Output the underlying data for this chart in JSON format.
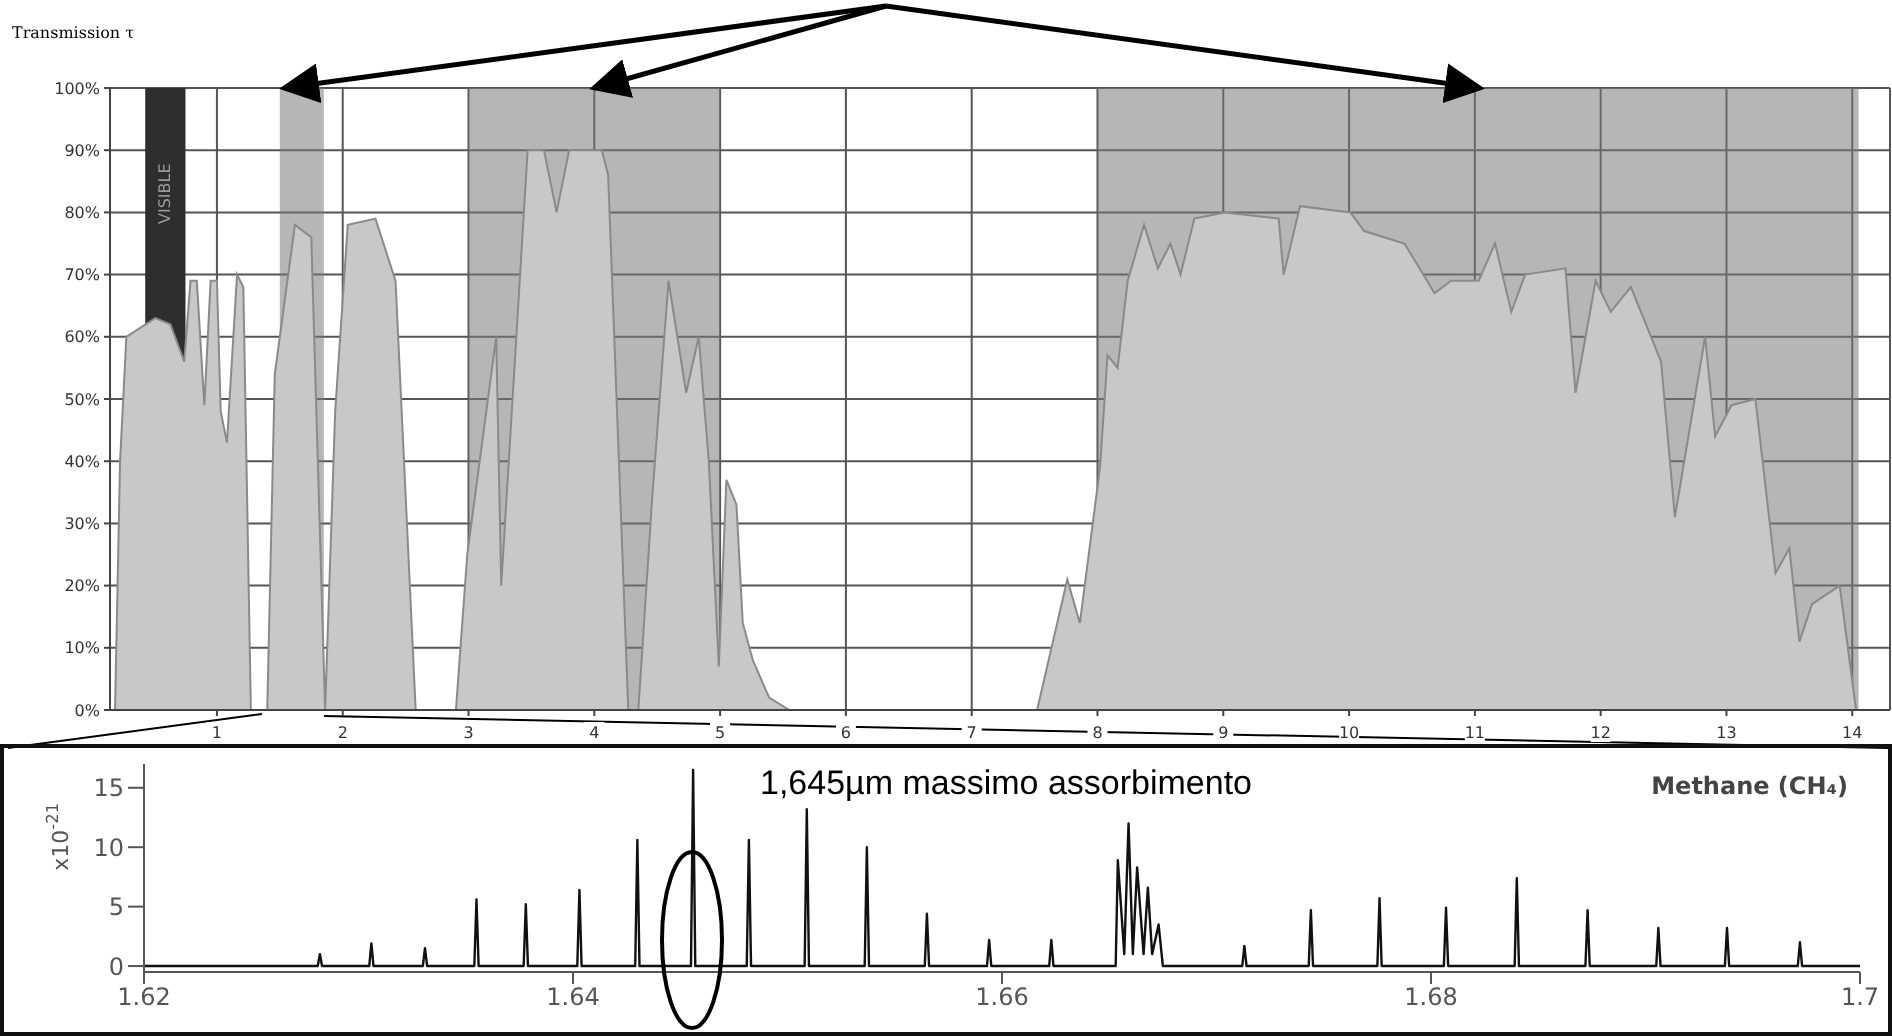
{
  "chart_data": [
    {
      "type": "area",
      "ylabel": "Transmission  τ",
      "xlim": [
        0.15,
        14.3
      ],
      "xticks": [
        1,
        2,
        3,
        4,
        5,
        6,
        7,
        8,
        9,
        10,
        11,
        12,
        13,
        14
      ],
      "ylim": [
        0,
        100
      ],
      "yticks": [
        {
          "value": 0,
          "label": "0%"
        },
        {
          "value": 10,
          "label": "10%"
        },
        {
          "value": 20,
          "label": "20%"
        },
        {
          "value": 30,
          "label": "30%"
        },
        {
          "value": 40,
          "label": "40%"
        },
        {
          "value": 50,
          "label": "50%"
        },
        {
          "value": 60,
          "label": "60%"
        },
        {
          "value": 70,
          "label": "70%"
        },
        {
          "value": 80,
          "label": "80%"
        },
        {
          "value": 90,
          "label": "90%"
        },
        {
          "value": 100,
          "label": "100%"
        }
      ],
      "grid": true,
      "x": [
        0.19,
        0.23,
        0.28,
        0.51,
        0.63,
        0.74,
        0.79,
        0.84,
        0.9,
        0.95,
        1.0,
        1.03,
        1.08,
        1.16,
        1.21,
        1.27,
        1.4,
        1.46,
        1.62,
        1.75,
        1.86,
        1.94,
        2.04,
        2.26,
        2.42,
        2.58,
        2.9,
        2.99,
        3.22,
        3.26,
        3.47,
        3.6,
        3.7,
        3.8,
        4.06,
        4.11,
        4.27,
        4.35,
        4.46,
        4.59,
        4.73,
        4.83,
        4.91,
        4.99,
        5.05,
        5.13,
        5.18,
        5.26,
        5.39,
        5.55,
        7.52,
        7.76,
        7.86,
        8.02,
        8.08,
        8.16,
        8.24,
        8.37,
        8.48,
        8.58,
        8.66,
        8.77,
        9.01,
        9.44,
        9.48,
        9.61,
        10.01,
        10.12,
        10.44,
        10.68,
        10.81,
        11.03,
        11.16,
        11.29,
        11.4,
        11.72,
        11.8,
        11.96,
        12.08,
        12.24,
        12.48,
        12.59,
        12.83,
        12.91,
        13.04,
        13.23,
        13.39,
        13.5,
        13.58,
        13.68,
        13.9,
        14.03
      ],
      "values": [
        0,
        40,
        60,
        63,
        62,
        56,
        69,
        69,
        49,
        69,
        69,
        48,
        43,
        70,
        68,
        0,
        0,
        54,
        78,
        76,
        0,
        48,
        78,
        79,
        69,
        0,
        0,
        25,
        60,
        20,
        90,
        90,
        80,
        90,
        90,
        86,
        0,
        0,
        34,
        69,
        51,
        60,
        40,
        7,
        37,
        33,
        14,
        8,
        2,
        0,
        0,
        21,
        14,
        39,
        57,
        55,
        69,
        78,
        71,
        75,
        70,
        79,
        80,
        79,
        70,
        81,
        80,
        77,
        75,
        67,
        69,
        69,
        75,
        64,
        70,
        71,
        51,
        69,
        64,
        68,
        56,
        31,
        60,
        44,
        49,
        50,
        22,
        26,
        11,
        17,
        20,
        0
      ],
      "color": "#c8c8c8",
      "bands": [
        {
          "axis": "x",
          "from": 0.43,
          "to": 0.75,
          "label": "VISIBLE",
          "color": "#2e2e2e"
        },
        {
          "axis": "x",
          "from": 1.5,
          "to": 1.85,
          "color": "#7a7a7a"
        },
        {
          "axis": "x",
          "from": 3,
          "to": 5,
          "color": "#7a7a7a"
        },
        {
          "axis": "x",
          "from": 8,
          "to": 14.05,
          "color": "#7a7a7a"
        }
      ]
    },
    {
      "type": "line",
      "title": "Methane (CH₄)",
      "ylabel": "x10$^{-21}$",
      "annotations": [
        "1,645µm massimo assorbimento"
      ],
      "xlim": [
        1.62,
        1.7
      ],
      "xticks": [
        1.62,
        1.64,
        1.66,
        1.68,
        {
          "value": 1.7,
          "label": "1.7"
        }
      ],
      "ylim": [
        -0.5,
        17
      ],
      "yticks": [
        0,
        5,
        10,
        15
      ],
      "grid": false,
      "color": "#111111",
      "x": [
        1.62,
        1.6281,
        1.6282,
        1.6283,
        1.6305,
        1.6306,
        1.6307,
        1.633,
        1.6331,
        1.6332,
        1.6354,
        1.6355,
        1.6356,
        1.6377,
        1.6378,
        1.6379,
        1.6402,
        1.6403,
        1.6404,
        1.6429,
        1.643,
        1.6431,
        1.6455,
        1.6456,
        1.6457,
        1.6481,
        1.6482,
        1.6483,
        1.6508,
        1.6509,
        1.651,
        1.6536,
        1.6537,
        1.6538,
        1.6564,
        1.6565,
        1.6566,
        1.6593,
        1.6594,
        1.6595,
        1.6622,
        1.6623,
        1.6624,
        1.6653,
        1.6654,
        1.6657,
        1.6659,
        1.6661,
        1.6663,
        1.6666,
        1.6668,
        1.667,
        1.6673,
        1.6675,
        1.6712,
        1.6713,
        1.6714,
        1.6743,
        1.6744,
        1.6745,
        1.6775,
        1.6776,
        1.6777,
        1.6806,
        1.6807,
        1.6808,
        1.6839,
        1.684,
        1.6841,
        1.6872,
        1.6873,
        1.6874,
        1.6905,
        1.6906,
        1.6907,
        1.6937,
        1.6938,
        1.6939,
        1.6971,
        1.6972,
        1.6973,
        1.7
      ],
      "values": [
        0,
        0,
        1.0,
        0,
        0,
        1.9,
        0,
        0,
        1.5,
        0,
        0,
        5.6,
        0,
        0,
        5.2,
        0,
        0,
        6.4,
        0,
        0,
        10.6,
        0,
        0,
        16.5,
        0,
        0,
        10.6,
        0,
        0,
        13.2,
        0,
        0,
        10.0,
        0,
        0,
        4.4,
        0,
        0,
        2.2,
        0,
        0,
        2.2,
        0,
        0,
        8.9,
        1,
        12.0,
        1,
        8.3,
        1,
        6.6,
        1,
        3.5,
        0,
        0,
        1.7,
        0,
        0,
        4.7,
        0,
        0,
        5.7,
        0,
        0,
        4.9,
        0,
        0,
        7.4,
        0,
        0,
        4.7,
        0,
        0,
        3.2,
        0,
        0,
        3.2,
        0,
        0,
        2.0,
        0,
        0
      ]
    }
  ]
}
